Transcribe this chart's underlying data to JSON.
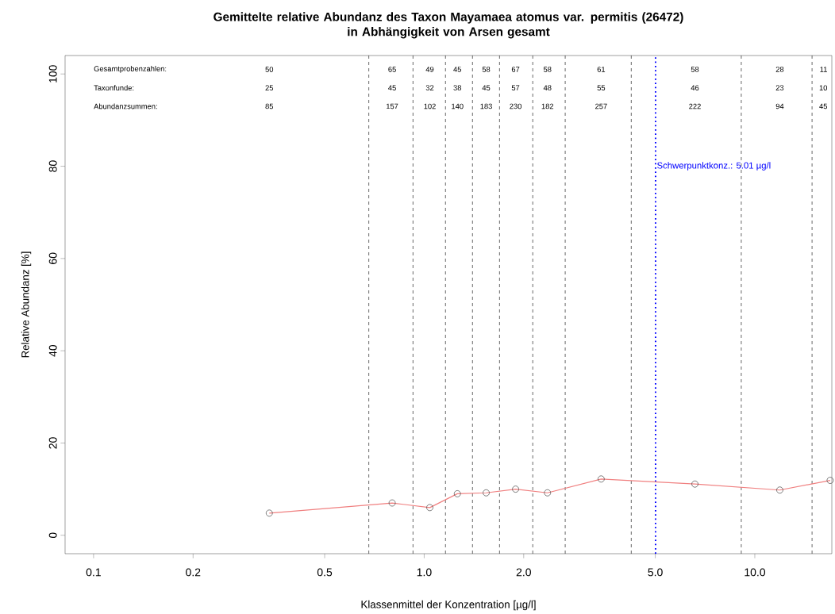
{
  "chart_data": {
    "type": "line",
    "title": "Gemittelte relative Abundanz des Taxon Mayamaea atomus var. permitis (26472)\nin Abhängigkeit von Arsen gesamt",
    "xlabel": "Klassenmittel der Konzentration [µg/l]",
    "ylabel": "Relative Abundanz [%]",
    "log": "x",
    "xlim": [
      0.082,
      17.1
    ],
    "ylim": [
      -4,
      104
    ],
    "xticks": [
      0.1,
      0.2,
      0.5,
      {
        "value": 1,
        "label": "1.0"
      },
      {
        "value": 2,
        "label": "2.0"
      },
      {
        "value": 5,
        "label": "5.0"
      },
      {
        "value": 10,
        "label": "10.0"
      }
    ],
    "yticks": [
      0,
      20,
      40,
      60,
      80,
      100
    ],
    "grid": false,
    "marker": "circle",
    "line_style": "solid",
    "x": [
      0.34,
      0.8,
      1.04,
      1.26,
      1.54,
      1.89,
      2.36,
      3.43,
      6.59,
      11.9,
      16.9
    ],
    "series": [
      {
        "color": "#f08080",
        "values": [
          4.8,
          7.0,
          6.0,
          9.0,
          9.2,
          10.0,
          9.2,
          12.2,
          11.1,
          9.8,
          11.9
        ]
      }
    ],
    "ref_lines": [
      {
        "axis": "x",
        "value": 0.68,
        "color": "#404040",
        "line_style": "dashed"
      },
      {
        "axis": "x",
        "value": 0.925,
        "color": "#404040",
        "line_style": "dashed"
      },
      {
        "axis": "x",
        "value": 1.16,
        "color": "#404040",
        "line_style": "dashed"
      },
      {
        "axis": "x",
        "value": 1.4,
        "color": "#404040",
        "line_style": "dashed"
      },
      {
        "axis": "x",
        "value": 1.69,
        "color": "#404040",
        "line_style": "dashed"
      },
      {
        "axis": "x",
        "value": 2.13,
        "color": "#404040",
        "line_style": "dashed"
      },
      {
        "axis": "x",
        "value": 2.67,
        "color": "#404040",
        "line_style": "dashed"
      },
      {
        "axis": "x",
        "value": 4.23,
        "color": "#404040",
        "line_style": "dashed"
      },
      {
        "axis": "x",
        "value": 9.1,
        "color": "#404040",
        "line_style": "dashed"
      },
      {
        "axis": "x",
        "value": 14.9,
        "color": "#404040",
        "line_style": "dashed"
      },
      {
        "axis": "x",
        "value": 5.01,
        "color": "#0000ff",
        "line_style": "dotted",
        "label": "Schwerpunktkonz.: 5.01 µg/l"
      }
    ],
    "annotations": [
      "Gesamtprobenzahlen:",
      "Taxonfunde:",
      "Abundanzsummen:",
      "50",
      "25",
      "85",
      "65",
      "45",
      "157",
      "49",
      "32",
      "102",
      "45",
      "38",
      "140",
      "58",
      "45",
      "183",
      "67",
      "57",
      "230",
      "58",
      "48",
      "182",
      "61",
      "55",
      "257",
      "58",
      "46",
      "222",
      "28",
      "23",
      "94",
      "11",
      "10",
      "45"
    ]
  }
}
